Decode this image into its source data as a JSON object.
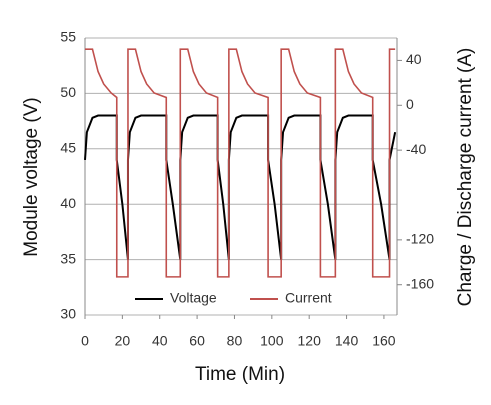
{
  "chart_data": {
    "type": "line",
    "x_label": "Time (Min)",
    "y_label": "Module voltage (V)",
    "y2_label": "Charge / Discharge current (A)",
    "x": [
      0,
      1,
      4,
      7,
      10,
      14,
      17,
      17,
      20,
      23,
      23,
      24,
      27,
      30,
      33,
      37,
      43.5,
      43.5,
      47,
      51,
      51,
      52,
      55,
      58,
      61,
      65,
      71,
      71,
      74,
      77,
      77,
      78,
      81,
      84,
      87,
      91,
      98,
      98,
      101.5,
      105,
      105,
      106,
      109,
      112,
      115,
      119,
      126,
      126,
      130,
      134,
      134,
      135,
      138,
      141,
      144,
      148,
      154,
      154,
      158.5,
      163,
      163,
      166
    ],
    "series": [
      {
        "name": "Voltage",
        "color": "#000000",
        "values": [
          44,
          46.5,
          47.8,
          48,
          48,
          48,
          48,
          44,
          40,
          35,
          44,
          46.5,
          47.8,
          48,
          48,
          48,
          48,
          44,
          40,
          35,
          44,
          46.5,
          47.8,
          48,
          48,
          48,
          48,
          44,
          40,
          35,
          44,
          46.5,
          47.8,
          48,
          48,
          48,
          48,
          44,
          40,
          35,
          44,
          46.5,
          47.8,
          48,
          48,
          48,
          48,
          44,
          40,
          35,
          44,
          46.5,
          47.8,
          48,
          48,
          48,
          48,
          44,
          40,
          35,
          44,
          46.5
        ]
      },
      {
        "name": "Current",
        "color": "#c0504d",
        "axis": "y2",
        "values": [
          50,
          50,
          50,
          30,
          19,
          11,
          7,
          -153,
          -153,
          -153,
          50,
          50,
          50,
          30,
          19,
          11,
          7,
          -153,
          -153,
          -153,
          50,
          50,
          50,
          30,
          19,
          11,
          7,
          -153,
          -153,
          -153,
          50,
          50,
          50,
          30,
          19,
          11,
          7,
          -153,
          -153,
          -153,
          50,
          50,
          50,
          30,
          19,
          11,
          7,
          -153,
          -153,
          -153,
          50,
          50,
          50,
          30,
          19,
          11,
          7,
          -153,
          -153,
          -153,
          50,
          50
        ]
      }
    ],
    "xlim": [
      0,
      167
    ],
    "xticks": [
      0,
      20,
      40,
      60,
      80,
      100,
      120,
      140,
      160
    ],
    "ylim": [
      30,
      55
    ],
    "yticks": [
      30,
      35,
      40,
      45,
      50,
      55
    ],
    "y2lim": [
      -187,
      60
    ],
    "y2ticks": [
      40,
      0,
      -40,
      -120,
      -160
    ],
    "grid": true,
    "legend": "bottom"
  }
}
